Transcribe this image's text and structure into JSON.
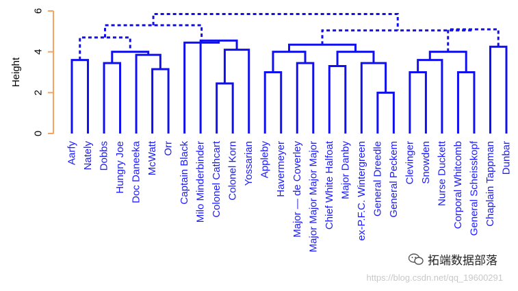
{
  "chart_data": {
    "type": "dendrogram",
    "title": "",
    "ylabel": "Height",
    "xlabel": "",
    "ylim": [
      0,
      6
    ],
    "yticks": [
      "0",
      "2",
      "4",
      "6"
    ],
    "leaves": [
      "Aarfy",
      "Nately",
      "Dobbs",
      "Hungry Joe",
      "Doc Daneeka",
      "McWatt",
      "Orr",
      "Captain Black",
      "Milo Minderbinder",
      "Colonel Cathcart",
      "Colonel Korn",
      "Yossarian",
      "Appleby",
      "Havermeyer",
      "Major — de Coverley",
      "Major Major Major Major",
      "Chief White Halfoat",
      "Major Danby",
      "ex-P.F.C. Wintergreen",
      "General Dreedle",
      "General Peckem",
      "Clevinger",
      "Snowden",
      "Nurse Duckett",
      "Corporal Whitcomb",
      "General Scheisskopf",
      "Chaplain Tappman",
      "Dunbar"
    ],
    "merges": [
      {
        "left": 1,
        "right": 2,
        "height": 3.6
      },
      {
        "left": 3,
        "right": 4,
        "height": 3.45
      },
      {
        "left": 6,
        "right": 7,
        "height": 3.15
      },
      {
        "left": 5,
        "right": "m3",
        "height": 3.85
      },
      {
        "left": "m2",
        "right": "m4",
        "height": 4.0
      },
      {
        "left": "m1",
        "right": "m5",
        "height": 4.7,
        "dashed": true
      },
      {
        "left": 10,
        "right": 11,
        "height": 2.45
      },
      {
        "left": "m7",
        "right": 12,
        "height": 4.1
      },
      {
        "left": 9,
        "right": "m8",
        "height": 4.55
      },
      {
        "left": 8,
        "right": "m9",
        "height": 4.45
      },
      {
        "left": "m6",
        "right": "m10",
        "height": 5.3,
        "dashed": true
      },
      {
        "left": 13,
        "right": 14,
        "height": 3.0
      },
      {
        "left": 15,
        "right": 16,
        "height": 3.45
      },
      {
        "left": "m12",
        "right": "m13",
        "height": 4.0
      },
      {
        "left": 17,
        "right": 18,
        "height": 3.3
      },
      {
        "left": 20,
        "right": 21,
        "height": 2.0
      },
      {
        "left": 19,
        "right": "m16",
        "height": 3.45
      },
      {
        "left": "m15",
        "right": "m17",
        "height": 4.0
      },
      {
        "left": "m14",
        "right": "m18",
        "height": 4.35
      },
      {
        "left": 22,
        "right": 23,
        "height": 3.0
      },
      {
        "left": "m20",
        "right": 24,
        "height": 3.6
      },
      {
        "left": 25,
        "right": 26,
        "height": 3.0
      },
      {
        "left": "m21",
        "right": "m22",
        "height": 4.0
      },
      {
        "left": 27,
        "right": 28,
        "height": 4.25
      },
      {
        "left": "m23",
        "right": "m24",
        "height": 5.1,
        "dashed": true
      },
      {
        "left": "m19",
        "right": "m25",
        "height": 5.05,
        "dashed": true
      },
      {
        "left": "m11",
        "right": "m26",
        "height": 5.85,
        "dashed": true
      }
    ]
  },
  "watermark": "https://blog.csdn.net/qq_19600291",
  "brand": {
    "name": "拓端数据部落",
    "icon": "wechat-icon"
  }
}
